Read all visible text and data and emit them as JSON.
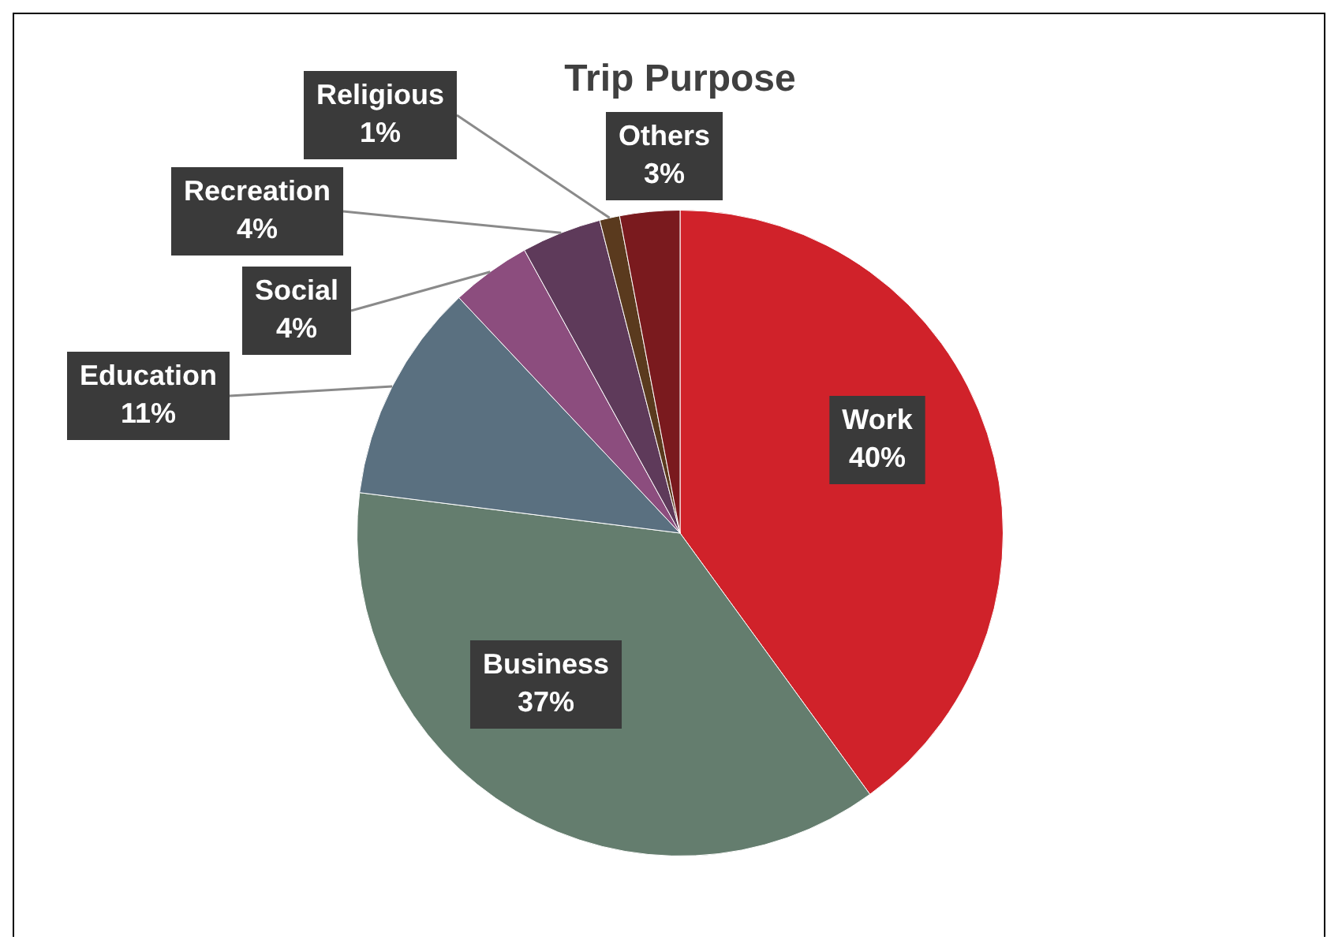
{
  "chart_data": {
    "type": "pie",
    "title": "Trip Purpose",
    "categories": [
      "Work",
      "Business",
      "Education",
      "Social",
      "Recreation",
      "Religious",
      "Others"
    ],
    "values": [
      40,
      37,
      11,
      4,
      4,
      1,
      3
    ],
    "value_labels": [
      "40%",
      "37%",
      "11%",
      "4%",
      "4%",
      "1%",
      "3%"
    ],
    "colors": [
      "#d0222a",
      "#647d6e",
      "#5a7080",
      "#8c4d7e",
      "#5e3a5a",
      "#5a3a1e",
      "#7a1a1e"
    ],
    "legend": false
  }
}
